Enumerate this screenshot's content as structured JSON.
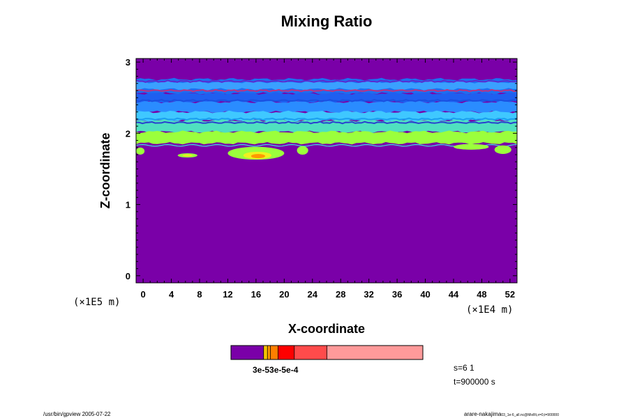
{
  "chart_data": {
    "type": "heatmap",
    "title": "Mixing Ratio",
    "xlabel": "X-coordinate",
    "ylabel": "Z-coordinate",
    "x_scale_label": "(×1E4 m)",
    "y_scale_label": "(×1E5 m)",
    "xlim": [
      -1,
      53
    ],
    "ylim": [
      -0.1,
      3.05
    ],
    "x_ticks": [
      "0",
      "4",
      "8",
      "12",
      "16",
      "20",
      "24",
      "28",
      "32",
      "36",
      "40",
      "44",
      "48",
      "52"
    ],
    "y_ticks": [
      "0",
      "1",
      "2",
      "3"
    ],
    "background_color": "#7a00a8",
    "layers": [
      {
        "z": [
          2.56,
          2.76
        ],
        "color": "#1e6ef0",
        "note": "upper band"
      },
      {
        "z": [
          2.62,
          2.72
        ],
        "color": "#3aa0ff"
      },
      {
        "z": [
          2.44,
          2.56
        ],
        "color": "#1f5ff0"
      },
      {
        "z": [
          2.3,
          2.44
        ],
        "color": "#2a8cff"
      },
      {
        "z": [
          2.18,
          2.3
        ],
        "color": "#3fc8ff"
      },
      {
        "z": [
          2.02,
          2.18
        ],
        "color": "#4fe0c0"
      },
      {
        "z": [
          1.86,
          2.02
        ],
        "color": "#9bff3c"
      }
    ],
    "colorbar": {
      "colors": [
        "#7a00a8",
        "#f5c400",
        "#ff9900",
        "#ff8000",
        "#ff0000",
        "#ff4b4b",
        "#ff9a9a"
      ],
      "bounds": [
        0,
        0.17,
        0.19,
        0.205,
        0.245,
        0.33,
        0.5,
        1.0
      ],
      "label": "3e-53e-5e-4"
    },
    "info_lines": [
      "s=6 1",
      "t=900000 s"
    ]
  },
  "footer": {
    "left": "/usr/bin/gpview 2005-07-22",
    "right": "arare-nakajima",
    "right_sub": "03_1e-6_all.nc@MixRt,x=0,t=900000"
  }
}
